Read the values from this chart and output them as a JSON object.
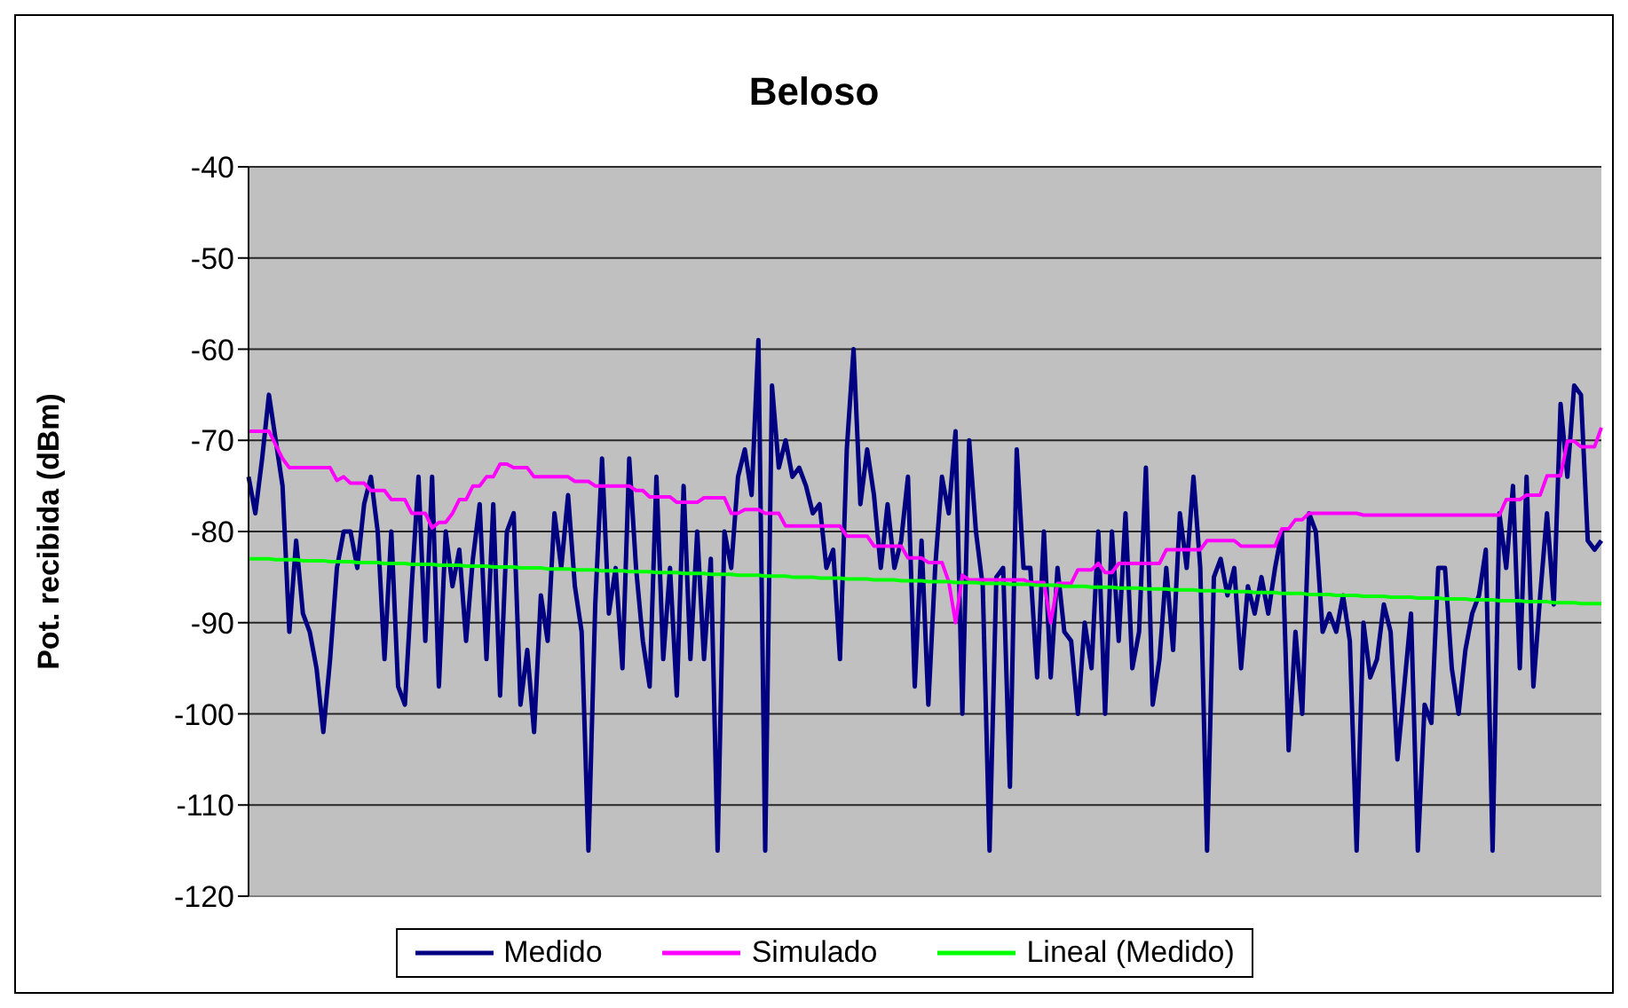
{
  "chart_data": {
    "type": "line",
    "title": "Beloso",
    "ylabel": "Pot. recibida (dBm)",
    "categories": [
      null,
      null,
      null,
      null,
      null,
      null,
      null,
      null,
      null,
      null,
      null,
      null,
      null,
      null,
      null,
      null,
      null,
      null,
      null,
      null,
      null,
      null,
      null,
      null,
      null,
      null,
      null,
      null,
      null,
      null,
      null,
      null,
      null,
      null,
      null,
      null,
      null,
      null,
      null,
      null,
      null,
      null,
      null,
      null,
      null,
      null,
      null,
      null,
      null,
      null,
      null,
      null,
      null,
      null,
      null,
      null,
      null,
      null,
      null,
      null,
      null,
      null,
      null,
      null,
      null,
      null,
      null,
      null,
      null,
      null,
      null,
      null,
      null,
      null,
      null,
      null,
      null,
      null,
      null,
      null,
      null,
      null,
      null,
      null,
      null,
      null,
      null,
      null,
      null,
      null,
      null,
      null,
      null,
      null,
      null,
      null,
      null,
      null,
      null,
      null,
      null,
      null,
      null,
      null,
      null,
      null,
      null,
      null,
      null,
      null,
      null,
      null,
      null,
      null,
      null,
      null,
      null,
      null,
      null,
      null,
      null,
      null,
      null,
      null,
      null,
      null,
      null,
      null,
      null,
      null,
      null,
      null,
      null,
      null,
      null,
      null,
      null,
      null,
      null,
      null,
      null,
      null,
      null,
      null,
      null,
      null,
      null,
      null,
      null,
      null,
      null,
      null,
      null,
      null,
      null,
      null,
      null,
      null,
      null,
      null,
      null,
      null,
      null,
      null,
      null,
      null,
      null,
      null,
      null,
      null,
      null,
      null,
      null,
      null,
      null,
      null,
      null,
      null,
      null,
      null,
      null,
      null,
      null,
      null,
      null,
      null,
      null,
      null,
      null,
      null,
      null,
      null,
      null,
      null,
      null,
      null,
      null,
      null,
      null,
      null
    ],
    "series": [
      {
        "name": "Medido",
        "color": "#000080",
        "values": [
          -74,
          -78,
          -72,
          -65,
          -70,
          -75,
          -91,
          -81,
          -89,
          -91,
          -95,
          -102,
          -94,
          -84,
          -80,
          -80,
          -84,
          -77,
          -74,
          -80,
          -94,
          -80,
          -97,
          -99,
          -86,
          -74,
          -92,
          -74,
          -97,
          -80,
          -86,
          -82,
          -92,
          -83,
          -77,
          -94,
          -77,
          -98,
          -80,
          -78,
          -99,
          -93,
          -102,
          -87,
          -92,
          -78,
          -84,
          -76,
          -86,
          -91,
          -115,
          -88,
          -72,
          -89,
          -84,
          -95,
          -72,
          -84,
          -92,
          -97,
          -74,
          -94,
          -84,
          -98,
          -75,
          -94,
          -80,
          -94,
          -83,
          -115,
          -80,
          -84,
          -74,
          -71,
          -76,
          -59,
          -115,
          -64,
          -73,
          -70,
          -74,
          -73,
          -75,
          -78,
          -77,
          -84,
          -82,
          -94,
          -71,
          -60,
          -77,
          -71,
          -76,
          -84,
          -77,
          -84,
          -81,
          -74,
          -97,
          -81,
          -99,
          -84,
          -74,
          -78,
          -69,
          -100,
          -70,
          -80,
          -86,
          -115,
          -85,
          -84,
          -108,
          -71,
          -84,
          -84,
          -96,
          -80,
          -96,
          -84,
          -91,
          -92,
          -100,
          -90,
          -95,
          -80,
          -100,
          -80,
          -92,
          -78,
          -95,
          -91,
          -73,
          -99,
          -94,
          -84,
          -93,
          -78,
          -84,
          -74,
          -84,
          -115,
          -85,
          -83,
          -87,
          -84,
          -95,
          -86,
          -89,
          -85,
          -89,
          -84,
          -80,
          -104,
          -91,
          -100,
          -78,
          -80,
          -91,
          -89,
          -91,
          -87,
          -92,
          -115,
          -90,
          -96,
          -94,
          -88,
          -91,
          -105,
          -97,
          -89,
          -115,
          -99,
          -101,
          -84,
          -84,
          -95,
          -100,
          -93,
          -89,
          -87,
          -82,
          -115,
          -78,
          -84,
          -75,
          -95,
          -74,
          -97,
          -87,
          -78,
          -88,
          -66,
          -74,
          -64,
          -65,
          -81,
          -82,
          -81
        ]
      },
      {
        "name": "Simulado",
        "color": "#ff00ff",
        "values": [
          -69,
          -69,
          -69,
          -69,
          -70.5,
          -72,
          -73,
          -73,
          -73,
          -73,
          -73,
          -73,
          -73,
          -74.4,
          -74,
          -74.7,
          -74.7,
          -74.7,
          -75.5,
          -75.5,
          -75.5,
          -76.5,
          -76.5,
          -76.5,
          -78,
          -78,
          -78,
          -79.6,
          -79,
          -79,
          -78,
          -76.5,
          -76.5,
          -75,
          -75,
          -74,
          -74,
          -72.6,
          -72.6,
          -73,
          -73,
          -73,
          -74,
          -74,
          -74,
          -74,
          -74,
          -74,
          -74.5,
          -74.5,
          -74.5,
          -75,
          -75,
          -75,
          -75,
          -75,
          -75,
          -75.5,
          -75.5,
          -76.2,
          -76.2,
          -76.2,
          -76.2,
          -76.8,
          -76.8,
          -76.8,
          -76.8,
          -76.3,
          -76.3,
          -76.3,
          -76.3,
          -78,
          -78,
          -77.6,
          -77.6,
          -77.6,
          -78,
          -78,
          -78,
          -79.4,
          -79.4,
          -79.4,
          -79.4,
          -79.4,
          -79.4,
          -79.4,
          -79.4,
          -79.4,
          -80.5,
          -80.5,
          -80.5,
          -80.5,
          -81.6,
          -81.6,
          -81.6,
          -81.6,
          -81.6,
          -82.9,
          -82.9,
          -82.9,
          -83.4,
          -83.4,
          -83.4,
          -85.5,
          -90,
          -84.8,
          -85.3,
          -85.3,
          -85.3,
          -85.3,
          -85.3,
          -85.3,
          -85.3,
          -85.3,
          -85.3,
          -85.6,
          -85.6,
          -85.6,
          -90,
          -85.7,
          -85.7,
          -85.7,
          -84.2,
          -84.2,
          -84.2,
          -83.5,
          -84.5,
          -84.5,
          -83.5,
          -83.5,
          -83.5,
          -83.5,
          -83.5,
          -83.5,
          -83.5,
          -82,
          -82,
          -82,
          -82,
          -82,
          -82,
          -81,
          -81,
          -81,
          -81,
          -81,
          -81.6,
          -81.6,
          -81.6,
          -81.6,
          -81.6,
          -81.6,
          -79.7,
          -79.7,
          -78.7,
          -78.7,
          -78,
          -78,
          -78,
          -78,
          -78,
          -78,
          -78,
          -78,
          -78.2,
          -78.2,
          -78.2,
          -78.2,
          -78.2,
          -78.2,
          -78.2,
          -78.2,
          -78.2,
          -78.2,
          -78.2,
          -78.2,
          -78.2,
          -78.2,
          -78.2,
          -78.2,
          -78.2,
          -78.2,
          -78.2,
          -78.2,
          -78.2,
          -76.5,
          -76.5,
          -76.5,
          -76,
          -76,
          -76,
          -73.9,
          -73.9,
          -73.9,
          -70.1,
          -70.1,
          -70.7,
          -70.7,
          -70.7,
          -68.6
        ]
      },
      {
        "name": "Lineal (Medido)",
        "color": "#00ff00",
        "values": [
          -83.0,
          -83.0,
          -83.0,
          -83.0,
          -83.1,
          -83.1,
          -83.1,
          -83.1,
          -83.2,
          -83.2,
          -83.2,
          -83.2,
          -83.3,
          -83.3,
          -83.3,
          -83.3,
          -83.4,
          -83.4,
          -83.4,
          -83.4,
          -83.5,
          -83.5,
          -83.5,
          -83.5,
          -83.6,
          -83.6,
          -83.6,
          -83.6,
          -83.7,
          -83.7,
          -83.7,
          -83.7,
          -83.8,
          -83.8,
          -83.8,
          -83.8,
          -83.9,
          -83.9,
          -83.9,
          -83.9,
          -84.0,
          -84.0,
          -84.0,
          -84.0,
          -84.1,
          -84.1,
          -84.1,
          -84.1,
          -84.2,
          -84.2,
          -84.2,
          -84.2,
          -84.3,
          -84.3,
          -84.3,
          -84.3,
          -84.4,
          -84.4,
          -84.4,
          -84.4,
          -84.5,
          -84.5,
          -84.5,
          -84.5,
          -84.6,
          -84.6,
          -84.6,
          -84.6,
          -84.7,
          -84.7,
          -84.7,
          -84.7,
          -84.8,
          -84.8,
          -84.8,
          -84.8,
          -84.9,
          -84.9,
          -84.9,
          -84.9,
          -85.0,
          -85.0,
          -85.0,
          -85.0,
          -85.1,
          -85.1,
          -85.1,
          -85.1,
          -85.2,
          -85.2,
          -85.2,
          -85.2,
          -85.3,
          -85.3,
          -85.3,
          -85.3,
          -85.4,
          -85.4,
          -85.4,
          -85.4,
          -85.5,
          -85.5,
          -85.5,
          -85.5,
          -85.6,
          -85.6,
          -85.6,
          -85.6,
          -85.7,
          -85.7,
          -85.7,
          -85.7,
          -85.8,
          -85.8,
          -85.8,
          -85.8,
          -85.9,
          -85.9,
          -85.9,
          -85.9,
          -86.0,
          -86.0,
          -86.0,
          -86.0,
          -86.1,
          -86.1,
          -86.1,
          -86.1,
          -86.2,
          -86.2,
          -86.2,
          -86.2,
          -86.3,
          -86.3,
          -86.3,
          -86.3,
          -86.4,
          -86.4,
          -86.4,
          -86.4,
          -86.5,
          -86.5,
          -86.5,
          -86.5,
          -86.6,
          -86.6,
          -86.6,
          -86.6,
          -86.7,
          -86.7,
          -86.7,
          -86.7,
          -86.8,
          -86.8,
          -86.8,
          -86.8,
          -86.9,
          -86.9,
          -86.9,
          -86.9,
          -87.0,
          -87.0,
          -87.0,
          -87.0,
          -87.1,
          -87.1,
          -87.1,
          -87.1,
          -87.2,
          -87.2,
          -87.2,
          -87.2,
          -87.3,
          -87.3,
          -87.3,
          -87.3,
          -87.4,
          -87.4,
          -87.4,
          -87.4,
          -87.5,
          -87.5,
          -87.5,
          -87.5,
          -87.6,
          -87.6,
          -87.6,
          -87.6,
          -87.7,
          -87.7,
          -87.7,
          -87.7,
          -87.8,
          -87.8,
          -87.8,
          -87.8,
          -87.9,
          -87.9,
          -87.9,
          -87.9
        ]
      }
    ],
    "ylim": [
      -120,
      -40
    ],
    "yticks": [
      -120,
      -110,
      -100,
      -90,
      -80,
      -70,
      -60,
      -50,
      -40
    ],
    "grid": "y",
    "legend": "bottom",
    "marker": "none",
    "line_style": "solid",
    "tick_labels": "y"
  }
}
